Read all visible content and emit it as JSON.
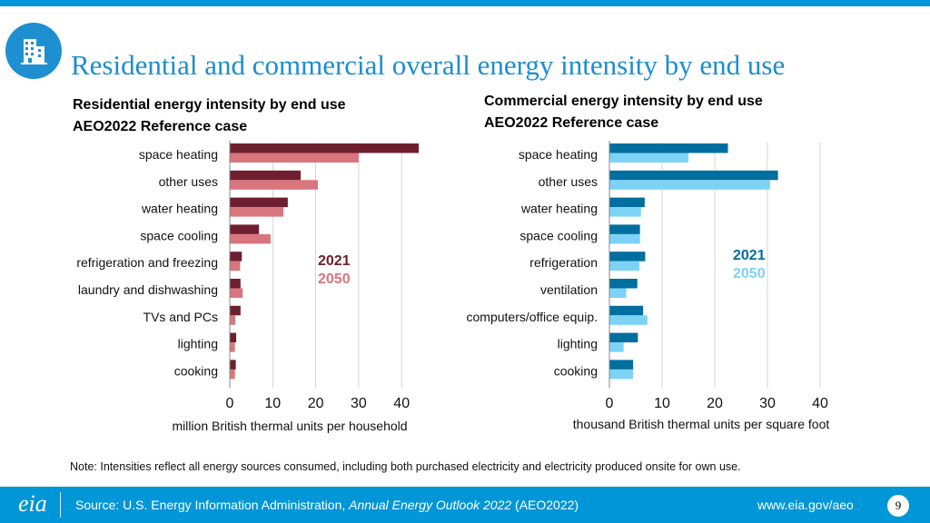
{
  "title": "Residential and commercial overall energy intensity by end use",
  "note": "Note: Intensities reflect all energy sources consumed, including both purchased electricity and electricity produced onsite for own use.",
  "footer": {
    "logo_text": "eia",
    "source_prefix": "Source: U.S. Energy Information Administration, ",
    "source_italic": "Annual Energy Outlook 2022",
    "source_suffix": " (AEO2022)",
    "url": "www.eia.gov/aeo",
    "page_number": "9"
  },
  "chart_data": [
    {
      "type": "bar",
      "orientation": "horizontal",
      "title_line1": "Residential energy intensity by end use",
      "title_line2": "AEO2022 Reference case",
      "categories": [
        "space heating",
        "other uses",
        "water heating",
        "space cooling",
        "refrigeration and freezing",
        "laundry and dishwashing",
        "TVs and PCs",
        "lighting",
        "cooking"
      ],
      "series": [
        {
          "name": "2021",
          "color": "#6e1f2f",
          "values": [
            44,
            16.5,
            13.5,
            6.8,
            2.8,
            2.5,
            2.5,
            1.5,
            1.4
          ]
        },
        {
          "name": "2050",
          "color": "#d9757d",
          "values": [
            30,
            20.5,
            12.5,
            9.5,
            2.4,
            3,
            1.3,
            1.2,
            1.2
          ]
        }
      ],
      "xlim": [
        0,
        44
      ],
      "xticks": [
        0,
        10,
        20,
        30,
        40
      ],
      "xlabel": "million British thermal units per household",
      "grid": true,
      "legend_position": "center-right"
    },
    {
      "type": "bar",
      "orientation": "horizontal",
      "title_line1": "Commercial energy intensity by end use",
      "title_line2": "AEO2022 Reference case",
      "categories": [
        "space heating",
        "other uses",
        "water heating",
        "space cooling",
        "refrigeration",
        "ventilation",
        "computers/office equip.",
        "lighting",
        "cooking"
      ],
      "series": [
        {
          "name": "2021",
          "color": "#006e9e",
          "values": [
            22.5,
            32,
            6.7,
            5.8,
            6.8,
            5.3,
            6.4,
            5.4,
            4.5
          ]
        },
        {
          "name": "2050",
          "color": "#7dd3f5",
          "values": [
            15,
            30.5,
            6,
            5.8,
            5.7,
            3.2,
            7.2,
            2.7,
            4.5
          ]
        }
      ],
      "xlim": [
        0,
        40
      ],
      "xticks": [
        0,
        10,
        20,
        30,
        40
      ],
      "xlabel": "thousand British thermal units per square foot",
      "grid": true,
      "legend_position": "center-right"
    }
  ]
}
